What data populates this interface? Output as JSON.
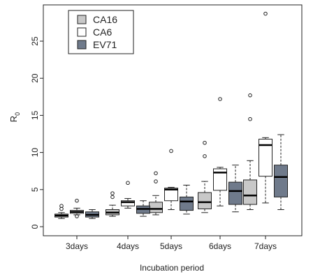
{
  "chart_data": {
    "type": "boxplot",
    "title": "",
    "xlabel": "Incubation period",
    "ylabel_main": "R",
    "ylabel_sub": "0",
    "categories": [
      "3days",
      "4days",
      "5days",
      "6days",
      "7days"
    ],
    "ylim": [
      0,
      30
    ],
    "yticks": [
      0,
      5,
      10,
      15,
      20,
      25
    ],
    "ytick_labels": [
      "0",
      "5",
      "10",
      "15",
      "20",
      "25"
    ],
    "grid": false,
    "legend_position": "top-left",
    "series": [
      {
        "name": "CA16",
        "color": "#c8c8c8",
        "boxes": [
          {
            "min": 1.1,
            "q1": 1.3,
            "median": 1.5,
            "q3": 1.7,
            "max": 1.9,
            "outliers": [
              2.4,
              2.8
            ]
          },
          {
            "min": 1.4,
            "q1": 1.6,
            "median": 1.9,
            "q3": 2.3,
            "max": 2.9,
            "outliers": [
              4.0,
              4.5
            ]
          },
          {
            "min": 1.6,
            "q1": 1.9,
            "median": 2.4,
            "q3": 3.3,
            "max": 4.2,
            "outliers": [
              6.1,
              7.2
            ]
          },
          {
            "min": 1.9,
            "q1": 2.4,
            "median": 3.3,
            "q3": 4.6,
            "max": 6.1,
            "outliers": [
              9.5,
              11.3
            ]
          },
          {
            "min": 2.3,
            "q1": 3.0,
            "median": 4.2,
            "q3": 6.3,
            "max": 8.9,
            "outliers": [
              14.5,
              17.7
            ]
          }
        ]
      },
      {
        "name": "CA6",
        "color": "#ffffff",
        "boxes": [
          {
            "min": 1.6,
            "q1": 1.8,
            "median": 2.0,
            "q3": 2.2,
            "max": 2.5,
            "outliers": [
              1.4,
              3.5
            ]
          },
          {
            "min": 2.5,
            "q1": 2.8,
            "median": 3.3,
            "q3": 3.5,
            "max": 3.8,
            "outliers": [
              5.9
            ]
          },
          {
            "min": 2.3,
            "q1": 3.5,
            "median": 5.0,
            "q3": 5.2,
            "max": 5.3,
            "outliers": [
              10.2
            ]
          },
          {
            "min": 2.8,
            "q1": 4.9,
            "median": 7.3,
            "q3": 7.8,
            "max": 8.0,
            "outliers": [
              17.2
            ]
          },
          {
            "min": 3.2,
            "q1": 6.8,
            "median": 11.0,
            "q3": 11.8,
            "max": 12.0,
            "outliers": [
              28.7
            ]
          }
        ]
      },
      {
        "name": "EV71",
        "color": "#6f7a8b",
        "boxes": [
          {
            "min": 1.1,
            "q1": 1.3,
            "median": 1.6,
            "q3": 2.0,
            "max": 2.3,
            "outliers": []
          },
          {
            "min": 1.4,
            "q1": 1.8,
            "median": 2.4,
            "q3": 2.8,
            "max": 3.5,
            "outliers": []
          },
          {
            "min": 1.7,
            "q1": 2.2,
            "median": 3.4,
            "q3": 4.0,
            "max": 5.6,
            "outliers": []
          },
          {
            "min": 2.0,
            "q1": 3.0,
            "median": 4.8,
            "q3": 6.0,
            "max": 8.3,
            "outliers": []
          },
          {
            "min": 2.3,
            "q1": 4.0,
            "median": 6.7,
            "q3": 8.3,
            "max": 12.4,
            "outliers": []
          }
        ]
      }
    ]
  }
}
